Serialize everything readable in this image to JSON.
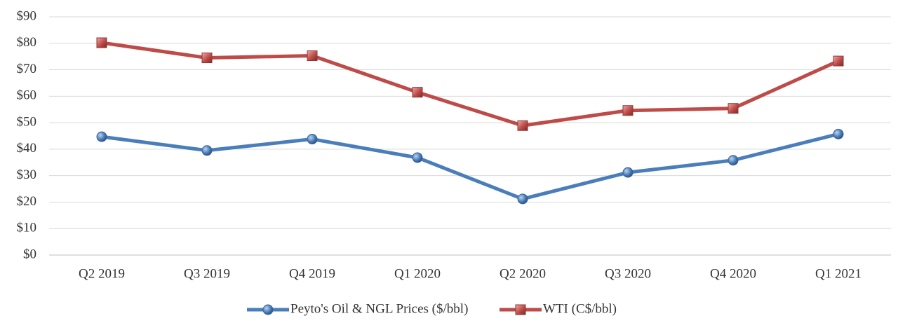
{
  "chart_data": {
    "type": "line",
    "categories": [
      "Q2 2019",
      "Q3 2019",
      "Q4 2019",
      "Q1 2020",
      "Q2 2020",
      "Q3 2020",
      "Q4 2020",
      "Q1 2021"
    ],
    "series": [
      {
        "name": "Peyto's Oil & NGL Prices ($/bbl)",
        "color": "#4a7ebb",
        "marker": "circle",
        "values": [
          44.7,
          39.5,
          43.8,
          36.8,
          21.2,
          31.2,
          35.8,
          45.7
        ]
      },
      {
        "name": "WTI (C$/bbl)",
        "color": "#be4b48",
        "marker": "square",
        "values": [
          80.2,
          74.5,
          75.3,
          61.5,
          48.9,
          54.6,
          55.4,
          73.3
        ]
      }
    ],
    "ylim": [
      0,
      90
    ],
    "yticks": [
      {
        "value": 0,
        "label": "$0"
      },
      {
        "value": 10,
        "label": "$10"
      },
      {
        "value": 20,
        "label": "$20"
      },
      {
        "value": 30,
        "label": "$30"
      },
      {
        "value": 40,
        "label": "$40"
      },
      {
        "value": 50,
        "label": "$50"
      },
      {
        "value": 60,
        "label": "$60"
      },
      {
        "value": 70,
        "label": "$70"
      },
      {
        "value": 80,
        "label": "$80"
      },
      {
        "value": 90,
        "label": "$90"
      }
    ],
    "grid": true,
    "legend": "bottom"
  }
}
